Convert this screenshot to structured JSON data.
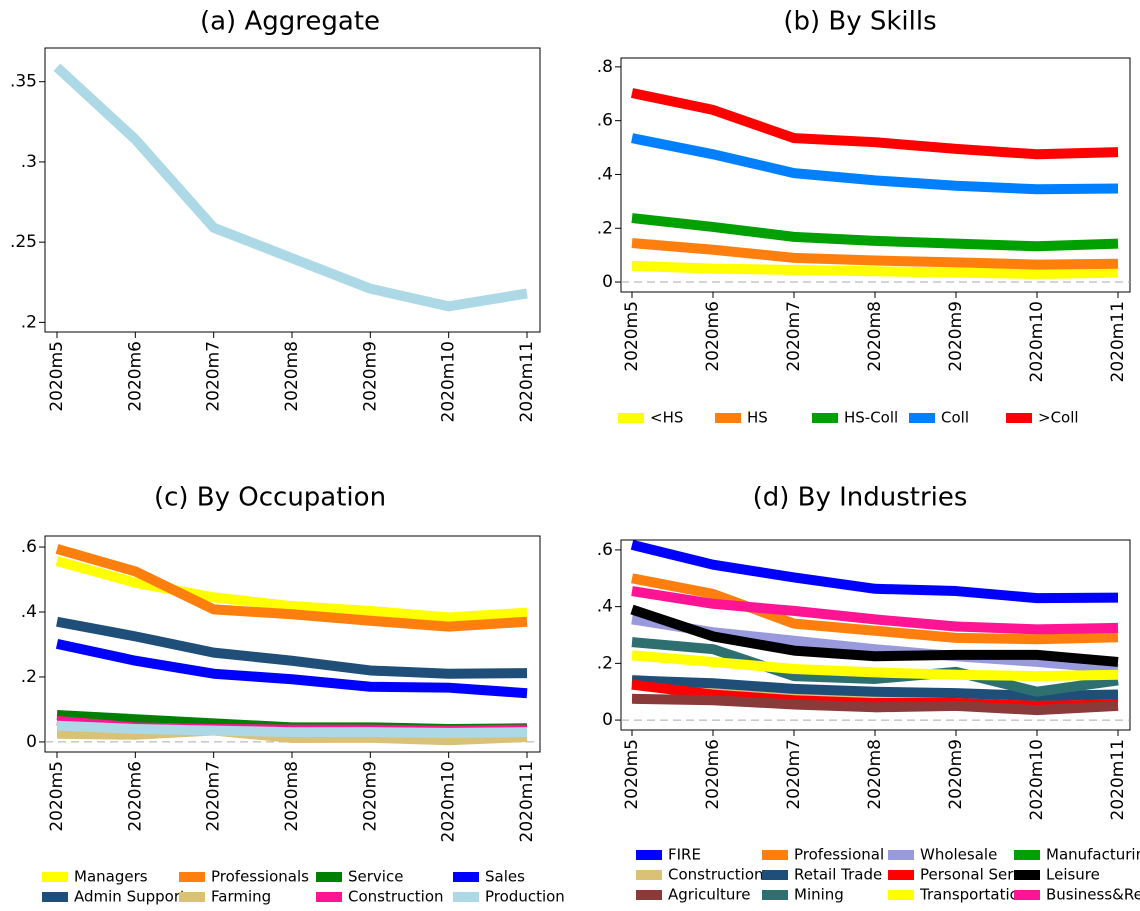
{
  "chart_data": [
    {
      "type": "line",
      "title": "(a) Aggregate",
      "categories": [
        "2020m5",
        "2020m6",
        "2020m7",
        "2020m8",
        "2020m9",
        "2020m10",
        "2020m11"
      ],
      "values": [
        0.359,
        0.314,
        0.259,
        0.24,
        0.221,
        0.21,
        0.218
      ],
      "color": "#add8e6",
      "ylim": [
        0.194,
        0.371
      ],
      "yticks": [
        {
          "value": 0.2,
          "label": ".2"
        },
        {
          "value": 0.25,
          "label": ".25"
        },
        {
          "value": 0.3,
          "label": ".3"
        },
        {
          "value": 0.35,
          "label": ".35"
        }
      ]
    },
    {
      "type": "line",
      "title": "(b) By Skills",
      "categories": [
        "2020m5",
        "2020m6",
        "2020m7",
        "2020m8",
        "2020m9",
        "2020m10",
        "2020m11"
      ],
      "series": [
        {
          "name": "<HS",
          "color": "#ffff00",
          "values": [
            0.06,
            0.05,
            0.045,
            0.04,
            0.035,
            0.03,
            0.035
          ]
        },
        {
          "name": "HS",
          "color": "#ff7f0e",
          "values": [
            0.145,
            0.12,
            0.09,
            0.08,
            0.073,
            0.065,
            0.068
          ]
        },
        {
          "name": "HS-Coll",
          "color": "#00a000",
          "values": [
            0.238,
            0.205,
            0.168,
            0.153,
            0.143,
            0.133,
            0.143
          ]
        },
        {
          "name": "Coll",
          "color": "#0080ff",
          "values": [
            0.535,
            0.475,
            0.405,
            0.378,
            0.358,
            0.345,
            0.348
          ]
        },
        {
          "name": ">Coll",
          "color": "#ff0000",
          "values": [
            0.703,
            0.64,
            0.535,
            0.52,
            0.495,
            0.475,
            0.483
          ]
        }
      ],
      "ylim": [
        -0.037,
        0.833
      ],
      "yticks": [
        0,
        {
          "value": 0.2,
          "label": ".2"
        },
        {
          "value": 0.4,
          "label": ".4"
        },
        {
          "value": 0.6,
          "label": ".6"
        },
        {
          "value": 0.8,
          "label": ".8"
        }
      ],
      "zero_line": true,
      "legend": "bottom"
    },
    {
      "type": "line",
      "title": "(c) By Occupation",
      "categories": [
        "2020m5",
        "2020m6",
        "2020m7",
        "2020m8",
        "2020m9",
        "2020m10",
        "2020m11"
      ],
      "series": [
        {
          "name": "Managers",
          "color": "#ffff00",
          "values": [
            0.557,
            0.49,
            0.445,
            0.418,
            0.403,
            0.383,
            0.398
          ]
        },
        {
          "name": "Professionals",
          "color": "#ff7f0e",
          "values": [
            0.594,
            0.525,
            0.408,
            0.393,
            0.373,
            0.355,
            0.37
          ]
        },
        {
          "name": "Service",
          "color": "#008000",
          "values": [
            0.083,
            0.07,
            0.057,
            0.045,
            0.045,
            0.04,
            0.042
          ]
        },
        {
          "name": "Sales",
          "color": "#0000ff",
          "values": [
            0.302,
            0.25,
            0.21,
            0.193,
            0.17,
            0.167,
            0.15
          ]
        },
        {
          "name": "Admin Support",
          "color": "#1f4e79",
          "values": [
            0.37,
            0.325,
            0.275,
            0.25,
            0.22,
            0.21,
            0.212
          ]
        },
        {
          "name": "Farming",
          "color": "#d9c277",
          "values": [
            0.025,
            0.022,
            0.035,
            0.012,
            0.013,
            0.005,
            0.015
          ]
        },
        {
          "name": "Construction",
          "color": "#ff1493",
          "values": [
            0.065,
            0.045,
            0.04,
            0.038,
            0.038,
            0.035,
            0.038
          ]
        },
        {
          "name": "Production",
          "color": "#add8e6",
          "values": [
            0.05,
            0.04,
            0.035,
            0.03,
            0.03,
            0.028,
            0.03
          ]
        }
      ],
      "ylim": [
        -0.031,
        0.634
      ],
      "yticks": [
        0,
        {
          "value": 0.2,
          "label": ".2"
        },
        {
          "value": 0.4,
          "label": ".4"
        },
        {
          "value": 0.6,
          "label": ".6"
        }
      ],
      "zero_line": true,
      "legend": "bottom"
    },
    {
      "type": "line",
      "title": "(d) By Industries",
      "categories": [
        "2020m5",
        "2020m6",
        "2020m7",
        "2020m8",
        "2020m9",
        "2020m10",
        "2020m11"
      ],
      "series": [
        {
          "name": "FIRE",
          "color": "#0000ff",
          "values": [
            0.618,
            0.548,
            0.503,
            0.463,
            0.455,
            0.43,
            0.432
          ]
        },
        {
          "name": "Professional",
          "color": "#ff7f0e",
          "values": [
            0.5,
            0.445,
            0.34,
            0.315,
            0.29,
            0.285,
            0.292
          ]
        },
        {
          "name": "Wholesale",
          "color": "#9999dd",
          "values": [
            0.355,
            0.31,
            0.28,
            0.25,
            0.225,
            0.205,
            0.18
          ]
        },
        {
          "name": "Manufacturing",
          "color": "#00a000",
          "values": [
            0.13,
            0.12,
            0.1,
            0.09,
            0.09,
            0.08,
            0.085
          ]
        },
        {
          "name": "Construction",
          "color": "#d9c277",
          "values": [
            0.143,
            0.12,
            0.1,
            0.085,
            0.09,
            0.075,
            0.08
          ]
        },
        {
          "name": "Retail Trade",
          "color": "#1f4e79",
          "values": [
            0.14,
            0.13,
            0.11,
            0.1,
            0.095,
            0.085,
            0.09
          ]
        },
        {
          "name": "Personal Serv.",
          "color": "#ff0000",
          "values": [
            0.125,
            0.09,
            0.07,
            0.06,
            0.06,
            0.05,
            0.055
          ]
        },
        {
          "name": "Leisure",
          "color": "#000000",
          "values": [
            0.39,
            0.295,
            0.245,
            0.225,
            0.23,
            0.23,
            0.205
          ]
        },
        {
          "name": "Agriculture",
          "color": "#8b3a3a",
          "values": [
            0.075,
            0.07,
            0.055,
            0.045,
            0.05,
            0.035,
            0.05
          ]
        },
        {
          "name": "Mining",
          "color": "#2e7070",
          "values": [
            0.275,
            0.25,
            0.155,
            0.145,
            0.17,
            0.1,
            0.14
          ]
        },
        {
          "name": "Transportation",
          "color": "#ffff00",
          "values": [
            0.228,
            0.205,
            0.18,
            0.168,
            0.16,
            0.155,
            0.16
          ]
        },
        {
          "name": "Business&Repairs",
          "color": "#ff1493",
          "values": [
            0.455,
            0.41,
            0.385,
            0.355,
            0.33,
            0.32,
            0.325
          ]
        }
      ],
      "ylim": [
        -0.035,
        0.635
      ],
      "yticks": [
        0,
        {
          "value": 0.2,
          "label": ".2"
        },
        {
          "value": 0.4,
          "label": ".4"
        },
        {
          "value": 0.6,
          "label": ".6"
        }
      ],
      "zero_line": true,
      "legend": "bottom"
    }
  ]
}
